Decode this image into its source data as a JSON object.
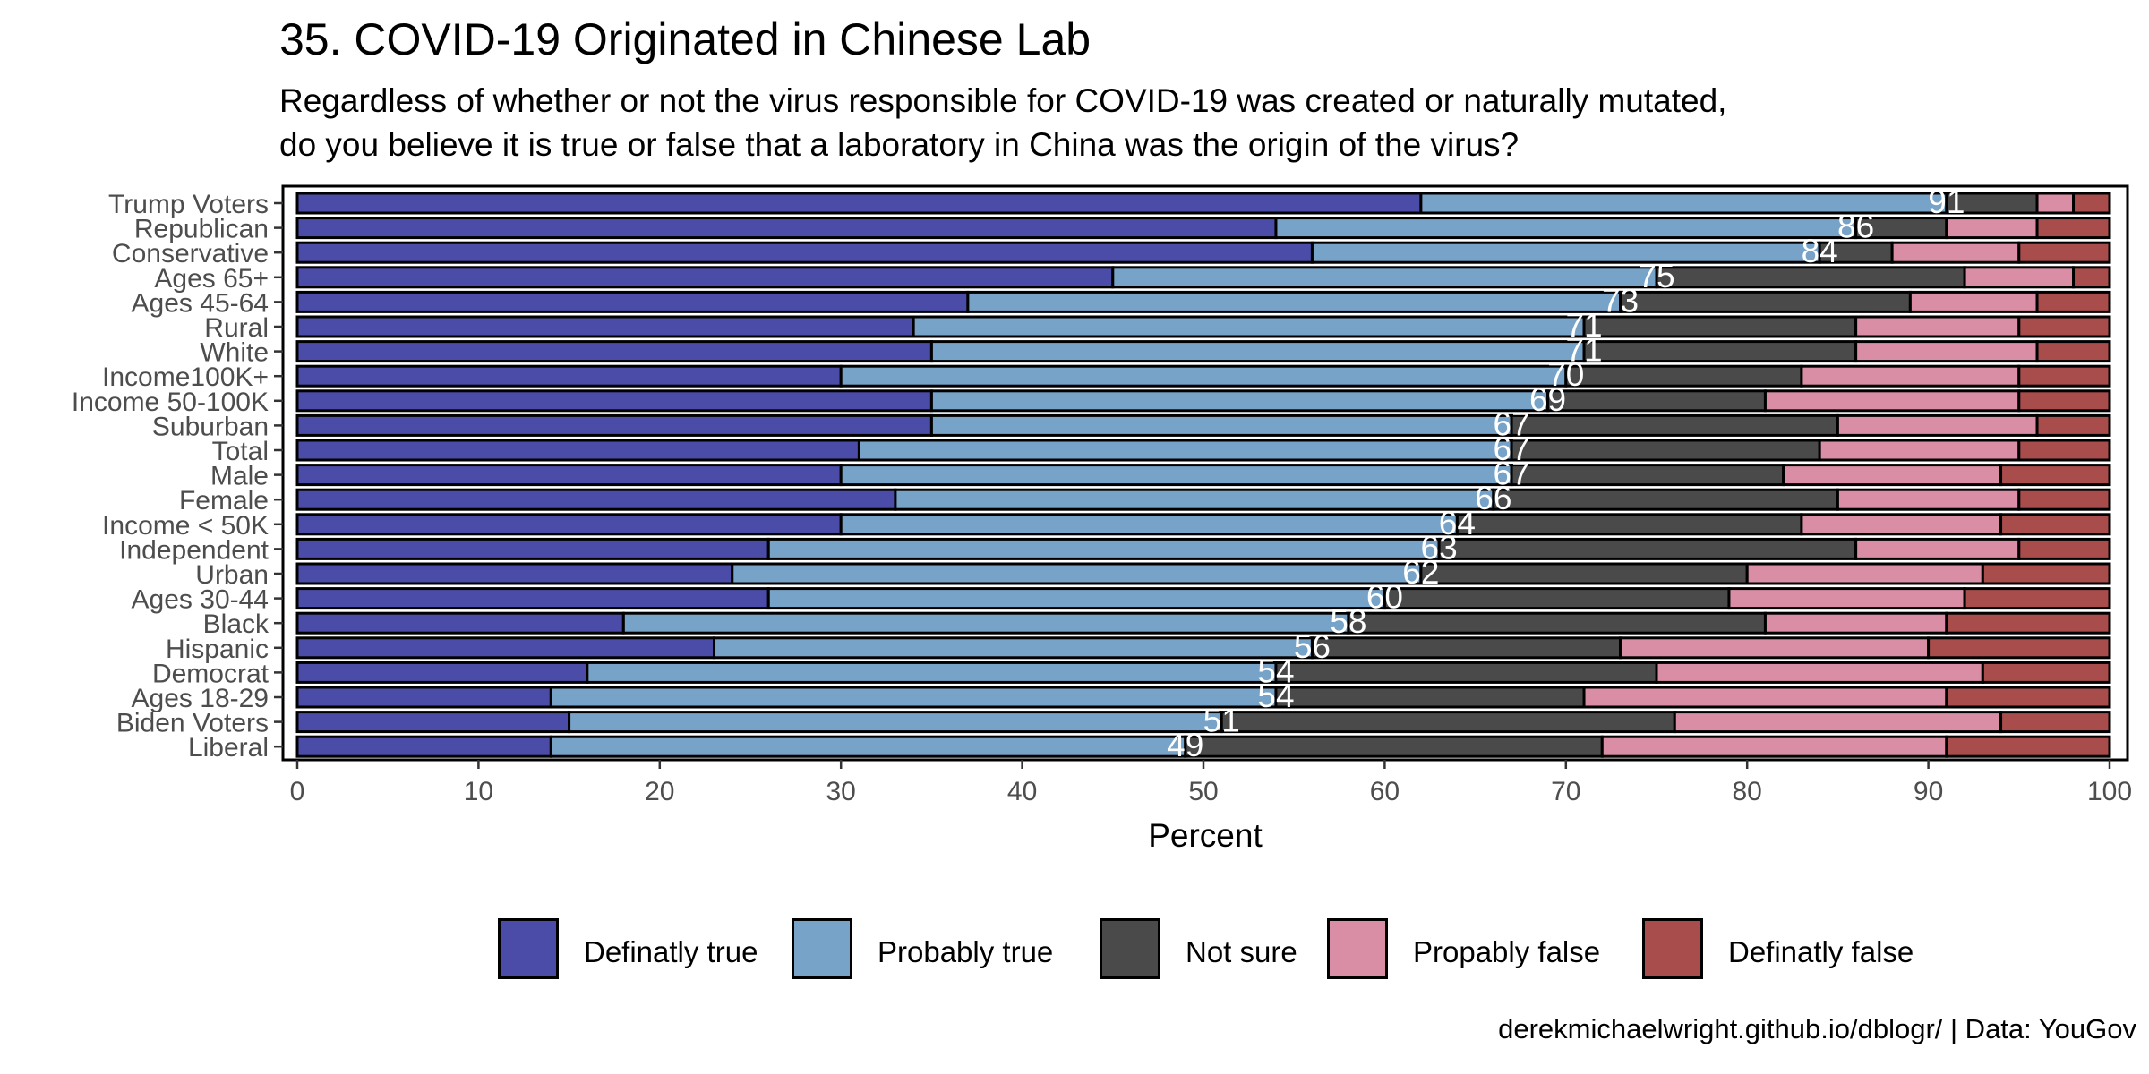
{
  "title": "35. COVID-19 Originated in Chinese Lab",
  "subtitle_lines": [
    "Regardless of whether or not the virus responsible for COVID-19 was created or naturally mutated,",
    "do you believe it is true or false that a laboratory in China was the origin of the virus?"
  ],
  "caption": "derekmichaelwright.github.io/dblogr/ | Data: YouGov",
  "chart_data": {
    "type": "bar",
    "orientation": "horizontal",
    "stacked": true,
    "xlabel": "Percent",
    "xlim": [
      0,
      100
    ],
    "xticks": [
      0,
      10,
      20,
      30,
      40,
      50,
      60,
      70,
      80,
      90,
      100
    ],
    "categories": [
      "Trump Voters",
      "Republican",
      "Conservative",
      "Ages 65+",
      "Ages 45-64",
      "Rural",
      "White",
      "Income100K+",
      "Income 50-100K",
      "Suburban",
      "Total",
      "Male",
      "Female",
      "Income < 50K",
      "Independent",
      "Urban",
      "Ages 30-44",
      "Black",
      "Hispanic",
      "Democrat",
      "Ages 18-29",
      "Biden Voters",
      "Liberal"
    ],
    "series": [
      {
        "name": "Definatly true",
        "color": "#4b4ba8",
        "values": [
          62,
          54,
          56,
          45,
          37,
          34,
          35,
          30,
          35,
          35,
          31,
          30,
          33,
          30,
          26,
          24,
          26,
          18,
          23,
          16,
          14,
          15,
          14
        ]
      },
      {
        "name": "Probably true",
        "color": "#78a3c8",
        "values": [
          29,
          32,
          28,
          30,
          36,
          37,
          36,
          40,
          34,
          32,
          36,
          37,
          33,
          34,
          37,
          38,
          34,
          40,
          33,
          38,
          40,
          36,
          35
        ]
      },
      {
        "name": "Not sure",
        "color": "#4a4a4a",
        "values": [
          5,
          5,
          4,
          17,
          16,
          15,
          15,
          13,
          12,
          18,
          17,
          15,
          19,
          19,
          23,
          18,
          19,
          23,
          17,
          21,
          17,
          25,
          23
        ]
      },
      {
        "name": "Propably false",
        "color": "#d98ea6",
        "values": [
          2,
          5,
          7,
          6,
          7,
          9,
          10,
          12,
          14,
          11,
          11,
          12,
          10,
          11,
          9,
          13,
          13,
          10,
          17,
          18,
          20,
          18,
          19
        ]
      },
      {
        "name": "Definatly false",
        "color": "#a84c4c",
        "values": [
          2,
          4,
          5,
          2,
          4,
          5,
          4,
          5,
          5,
          4,
          5,
          6,
          5,
          6,
          5,
          7,
          8,
          9,
          10,
          7,
          9,
          6,
          9
        ]
      }
    ],
    "labels": [
      91,
      86,
      84,
      75,
      73,
      71,
      71,
      70,
      69,
      67,
      67,
      67,
      66,
      64,
      63,
      62,
      60,
      58,
      56,
      54,
      54,
      51,
      49
    ],
    "legend_position": "bottom",
    "grid": false
  }
}
